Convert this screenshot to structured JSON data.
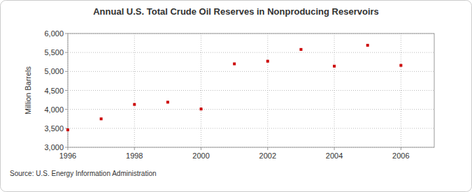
{
  "chart_data": {
    "type": "scatter",
    "title": "Annual U.S. Total Crude Oil Reserves in Nonproducing Reservoirs",
    "y_label": "Million Barrels",
    "annotations": [
      "Source: U.S. Energy Information Administration"
    ],
    "x": [
      1996,
      1997,
      1998,
      1999,
      2000,
      2001,
      2002,
      2003,
      2004,
      2005,
      2006
    ],
    "values": [
      3460,
      3750,
      4130,
      4190,
      4010,
      5200,
      5270,
      5580,
      5140,
      5690,
      5160
    ],
    "color": "#cc0000",
    "marker": "square",
    "xlim": [
      1996,
      2007
    ],
    "xticks": [
      1996,
      1998,
      2000,
      2002,
      2004,
      2006
    ],
    "ylim": [
      3000,
      6000
    ],
    "yticks": [
      {
        "value": 3000,
        "label": "3,000"
      },
      {
        "value": 3500,
        "label": "3,500"
      },
      {
        "value": 4000,
        "label": "4,000"
      },
      {
        "value": 4500,
        "label": "4,500"
      },
      {
        "value": 5000,
        "label": "5,000"
      },
      {
        "value": 5500,
        "label": "5,500"
      },
      {
        "value": 6000,
        "label": "6,000"
      }
    ],
    "grid": true
  }
}
